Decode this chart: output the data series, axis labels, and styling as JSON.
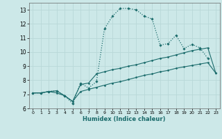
{
  "xlabel": "Humidex (Indice chaleur)",
  "bg_color": "#cce8e8",
  "grid_color": "#b8d8d8",
  "line_color": "#1a6b6b",
  "xlim": [
    -0.5,
    23.5
  ],
  "ylim": [
    6,
    13.5
  ],
  "xticks": [
    0,
    1,
    2,
    3,
    4,
    5,
    6,
    7,
    8,
    9,
    10,
    11,
    12,
    13,
    14,
    15,
    16,
    17,
    18,
    19,
    20,
    21,
    22,
    23
  ],
  "yticks": [
    6,
    7,
    8,
    9,
    10,
    11,
    12,
    13
  ],
  "line1_x": [
    0,
    1,
    2,
    3,
    4,
    5,
    6,
    7,
    8,
    9,
    10,
    11,
    12,
    13,
    14,
    15,
    16,
    17,
    18,
    19,
    20,
    21,
    22
  ],
  "line1_y": [
    7.1,
    7.1,
    7.2,
    7.25,
    6.9,
    6.35,
    7.8,
    7.45,
    7.9,
    11.65,
    12.55,
    13.1,
    13.1,
    13.0,
    12.55,
    12.35,
    10.5,
    10.6,
    11.2,
    10.25,
    10.55,
    10.3,
    9.55
  ],
  "line2_x": [
    0,
    1,
    2,
    3,
    4,
    5,
    6,
    7,
    8,
    9,
    10,
    11,
    12,
    13,
    14,
    15,
    16,
    17,
    18,
    19,
    20,
    21,
    22,
    23
  ],
  "line2_y": [
    7.1,
    7.1,
    7.2,
    7.25,
    6.9,
    6.5,
    7.7,
    7.8,
    8.45,
    8.6,
    8.75,
    8.85,
    9.0,
    9.1,
    9.25,
    9.4,
    9.55,
    9.65,
    9.8,
    9.95,
    10.1,
    10.2,
    10.3,
    8.5
  ],
  "line3_x": [
    0,
    1,
    2,
    3,
    4,
    5,
    6,
    7,
    8,
    9,
    10,
    11,
    12,
    13,
    14,
    15,
    16,
    17,
    18,
    19,
    20,
    21,
    22,
    23
  ],
  "line3_y": [
    7.1,
    7.1,
    7.2,
    7.1,
    6.9,
    6.5,
    7.2,
    7.35,
    7.5,
    7.65,
    7.8,
    7.9,
    8.05,
    8.2,
    8.35,
    8.45,
    8.6,
    8.7,
    8.85,
    8.95,
    9.05,
    9.15,
    9.25,
    8.5
  ]
}
